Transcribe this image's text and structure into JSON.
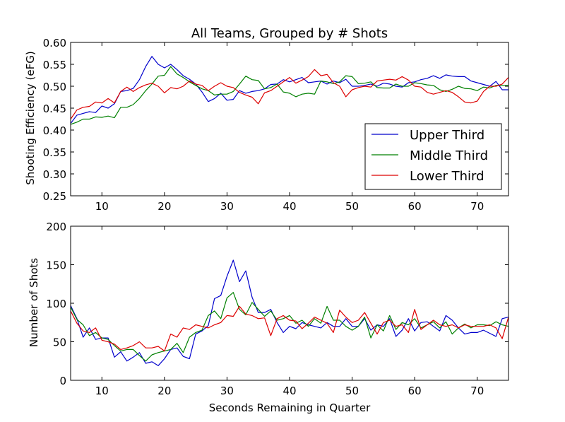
{
  "chart_data": [
    {
      "type": "line",
      "title": "All Teams, Grouped by # Shots",
      "xlabel": "",
      "ylabel": "Shooting Efficiency (eFG)",
      "xlim": [
        5,
        75
      ],
      "ylim": [
        0.25,
        0.6
      ],
      "xticks": [
        "10",
        "20",
        "30",
        "40",
        "50",
        "60",
        "70"
      ],
      "yticks": [
        "0.25",
        "0.30",
        "0.35",
        "0.40",
        "0.45",
        "0.50",
        "0.55",
        "0.60"
      ],
      "legend_position": "lower-right",
      "x": [
        5,
        6,
        7,
        8,
        9,
        10,
        11,
        12,
        13,
        14,
        15,
        16,
        17,
        18,
        19,
        20,
        21,
        22,
        23,
        24,
        25,
        26,
        27,
        28,
        29,
        30,
        31,
        32,
        33,
        34,
        35,
        36,
        37,
        38,
        39,
        40,
        41,
        42,
        43,
        44,
        45,
        46,
        47,
        48,
        49,
        50,
        51,
        52,
        53,
        54,
        55,
        56,
        57,
        58,
        59,
        60,
        61,
        62,
        63,
        64,
        65,
        66,
        67,
        68,
        69,
        70,
        71,
        72,
        73,
        74,
        75
      ],
      "series": [
        {
          "name": "Upper Third",
          "color": "#0000cc",
          "values": [
            0.415,
            0.434,
            0.438,
            0.442,
            0.44,
            0.455,
            0.45,
            0.46,
            0.488,
            0.49,
            0.495,
            0.515,
            0.545,
            0.568,
            0.55,
            0.542,
            0.55,
            0.538,
            0.524,
            0.516,
            0.505,
            0.487,
            0.465,
            0.472,
            0.484,
            0.468,
            0.47,
            0.49,
            0.484,
            0.488,
            0.49,
            0.494,
            0.504,
            0.505,
            0.515,
            0.51,
            0.515,
            0.52,
            0.508,
            0.51,
            0.512,
            0.505,
            0.512,
            0.508,
            0.516,
            0.5,
            0.5,
            0.502,
            0.505,
            0.5,
            0.507,
            0.505,
            0.5,
            0.498,
            0.508,
            0.51,
            0.515,
            0.518,
            0.524,
            0.518,
            0.526,
            0.523,
            0.522,
            0.522,
            0.512,
            0.508,
            0.504,
            0.5,
            0.511,
            0.492,
            0.492
          ]
        },
        {
          "name": "Middle Third",
          "color": "#008000",
          "values": [
            0.413,
            0.418,
            0.425,
            0.425,
            0.43,
            0.429,
            0.432,
            0.428,
            0.452,
            0.452,
            0.458,
            0.472,
            0.49,
            0.505,
            0.523,
            0.525,
            0.545,
            0.528,
            0.52,
            0.51,
            0.502,
            0.494,
            0.49,
            0.48,
            0.482,
            0.482,
            0.488,
            0.505,
            0.523,
            0.515,
            0.513,
            0.494,
            0.497,
            0.505,
            0.487,
            0.484,
            0.476,
            0.482,
            0.484,
            0.482,
            0.512,
            0.51,
            0.506,
            0.51,
            0.524,
            0.522,
            0.506,
            0.507,
            0.51,
            0.497,
            0.496,
            0.496,
            0.505,
            0.5,
            0.5,
            0.508,
            0.506,
            0.503,
            0.502,
            0.492,
            0.488,
            0.493,
            0.5,
            0.495,
            0.494,
            0.49,
            0.498,
            0.496,
            0.502,
            0.502,
            0.502
          ]
        },
        {
          "name": "Lower Third",
          "color": "#dd0000",
          "values": [
            0.425,
            0.446,
            0.452,
            0.454,
            0.464,
            0.462,
            0.472,
            0.462,
            0.488,
            0.498,
            0.488,
            0.497,
            0.503,
            0.507,
            0.5,
            0.485,
            0.497,
            0.494,
            0.5,
            0.512,
            0.505,
            0.502,
            0.49,
            0.5,
            0.508,
            0.5,
            0.497,
            0.486,
            0.48,
            0.475,
            0.46,
            0.485,
            0.49,
            0.5,
            0.51,
            0.52,
            0.507,
            0.514,
            0.522,
            0.538,
            0.524,
            0.527,
            0.508,
            0.5,
            0.476,
            0.492,
            0.497,
            0.5,
            0.498,
            0.512,
            0.514,
            0.516,
            0.514,
            0.522,
            0.514,
            0.5,
            0.498,
            0.486,
            0.482,
            0.486,
            0.49,
            0.486,
            0.476,
            0.464,
            0.462,
            0.466,
            0.488,
            0.5,
            0.5,
            0.505,
            0.52
          ]
        }
      ]
    },
    {
      "type": "line",
      "title": "",
      "xlabel": "Seconds Remaining in Quarter",
      "ylabel": "Number of Shots",
      "xlim": [
        5,
        75
      ],
      "ylim": [
        0,
        200
      ],
      "xticks": [
        "10",
        "20",
        "30",
        "40",
        "50",
        "60",
        "70"
      ],
      "yticks": [
        "0",
        "50",
        "100",
        "150",
        "200"
      ],
      "x": [
        5,
        6,
        7,
        8,
        9,
        10,
        11,
        12,
        13,
        14,
        15,
        16,
        17,
        18,
        19,
        20,
        21,
        22,
        23,
        24,
        25,
        26,
        27,
        28,
        29,
        30,
        31,
        32,
        33,
        34,
        35,
        36,
        37,
        38,
        39,
        40,
        41,
        42,
        43,
        44,
        45,
        46,
        47,
        48,
        49,
        50,
        51,
        52,
        53,
        54,
        55,
        56,
        57,
        58,
        59,
        60,
        61,
        62,
        63,
        64,
        65,
        66,
        67,
        68,
        69,
        70,
        71,
        72,
        73,
        74,
        75
      ],
      "series": [
        {
          "name": "Upper Third",
          "color": "#0000cc",
          "values": [
            97,
            80,
            56,
            68,
            53,
            55,
            55,
            30,
            37,
            25,
            30,
            36,
            22,
            24,
            19,
            28,
            40,
            42,
            31,
            28,
            60,
            64,
            71,
            106,
            110,
            135,
            156,
            128,
            142,
            108,
            88,
            88,
            92,
            75,
            62,
            70,
            67,
            75,
            72,
            70,
            68,
            75,
            70,
            70,
            80,
            70,
            70,
            80,
            65,
            72,
            70,
            80,
            57,
            65,
            80,
            64,
            75,
            76,
            70,
            64,
            84,
            78,
            68,
            60,
            62,
            62,
            65,
            61,
            57,
            80,
            82
          ]
        },
        {
          "name": "Middle Third",
          "color": "#008000",
          "values": [
            95,
            79,
            72,
            58,
            62,
            55,
            53,
            45,
            38,
            40,
            40,
            32,
            25,
            33,
            36,
            38,
            40,
            48,
            36,
            56,
            62,
            65,
            84,
            90,
            80,
            107,
            114,
            92,
            85,
            101,
            92,
            83,
            90,
            78,
            80,
            84,
            74,
            78,
            70,
            80,
            74,
            96,
            78,
            78,
            70,
            65,
            70,
            82,
            55,
            72,
            64,
            84,
            66,
            75,
            72,
            80,
            68,
            72,
            76,
            68,
            76,
            60,
            68,
            73,
            68,
            72,
            72,
            71,
            76,
            72,
            70
          ]
        },
        {
          "name": "Lower Third",
          "color": "#dd0000",
          "values": [
            90,
            74,
            64,
            62,
            68,
            52,
            50,
            47,
            40,
            42,
            45,
            50,
            42,
            42,
            44,
            38,
            60,
            56,
            68,
            66,
            72,
            70,
            68,
            72,
            75,
            84,
            83,
            96,
            86,
            84,
            80,
            81,
            58,
            80,
            84,
            78,
            77,
            67,
            74,
            82,
            78,
            74,
            62,
            91,
            82,
            75,
            78,
            88,
            74,
            60,
            75,
            78,
            70,
            72,
            62,
            92,
            66,
            72,
            78,
            72,
            70,
            72,
            68,
            72,
            70,
            70,
            70,
            72,
            68,
            54,
            82
          ]
        }
      ]
    }
  ]
}
